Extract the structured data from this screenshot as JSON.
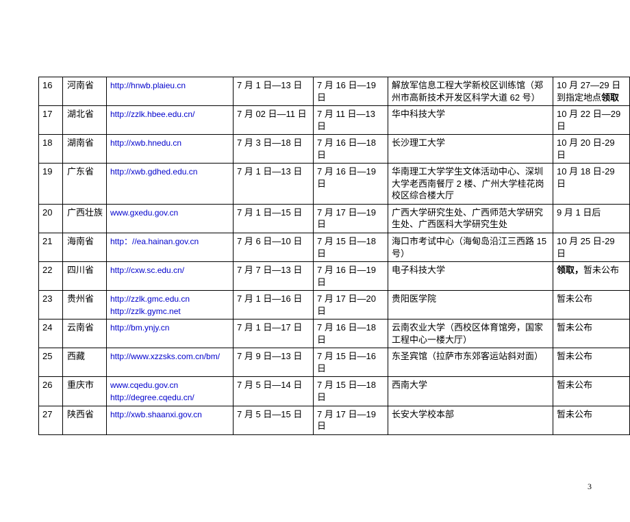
{
  "page_number": "3",
  "rows": [
    {
      "idx": "16",
      "province": "河南省",
      "url": "http://hnwb.plaieu.cn",
      "date1": "7 月 1 日—13 日",
      "date2": "7 月 16 日—19 日",
      "place": "解放军信息工程大学新校区训练馆（郑州市高新技术开发区科学大道 62 号）",
      "date3_pre": "10 月 27—29 日到指定地点",
      "date3_bold": "领取"
    },
    {
      "idx": "17",
      "province": "湖北省",
      "url": "http://zzlk.hbee.edu.cn/",
      "date1": "7 月 02 日—11 日",
      "date2": "7 月 11 日—13 日",
      "place": "华中科技大学",
      "date3": "10 月 22 日—29 日"
    },
    {
      "idx": "18",
      "province": "湖南省",
      "url": "http://xwb.hnedu.cn",
      "date1": "7 月 3 日—18 日",
      "date2": "7 月 16 日—18 日",
      "place": "长沙理工大学",
      "date3": "10 月 20 日-29 日"
    },
    {
      "idx": "19",
      "province": "广东省",
      "url": "http://xwb.gdhed.edu.cn",
      "date1": "7 月 1 日—13 日",
      "date2": "7 月 16 日—19 日",
      "place": "华南理工大学学生文体活动中心、深圳大学老西南餐厅 2 楼、广州大学桂花岗校区综合楼大厅",
      "date3": "10 月 18 日-29 日"
    },
    {
      "idx": "20",
      "province": "广西壮族",
      "url": "www.gxedu.gov.cn",
      "date1": "7 月 1 日—15 日",
      "date2": "7 月 17 日—19 日",
      "place": "广西大学研究生处、广西师范大学研究生处、广西医科大学研究生处",
      "date3": "9 月 1 日后"
    },
    {
      "idx": "21",
      "province": "海南省",
      "url": "http：//ea.hainan.gov.cn",
      "date1": "7 月 6 日—10 日",
      "date2": "7 月 15 日—18 日",
      "place": "海口市考试中心（海甸岛沿江三西路 15 号）",
      "date3": "10 月 25 日-29 日"
    },
    {
      "idx": "22",
      "province": "四川省",
      "url": "http://cxw.sc.edu.cn/",
      "date1": "7 月 7 日—13 日",
      "date2": "7 月 16 日—19 日",
      "place": "电子科技大学",
      "date3_bold": "领取，",
      "date3_post": "暂未公布"
    },
    {
      "idx": "23",
      "province": "贵州省",
      "url": "http://zzlk.gmc.edu.cn",
      "url2": "http://zzlk.gymc.net",
      "date1": "7 月 1 日—16 日",
      "date2": "7 月 17 日—20 日",
      "place": "贵阳医学院",
      "date3": "暂未公布"
    },
    {
      "idx": "24",
      "province": "云南省",
      "url": "http://bm.ynjy.cn",
      "date1": "7 月 1 日—17 日",
      "date2": "7 月 16 日—18 日",
      "place": "云南农业大学（西校区体育馆旁，国家工程中心一楼大厅）",
      "date3": "暂未公布"
    },
    {
      "idx": "25",
      "province": "西藏",
      "url": "http://www.xzzsks.com.cn/bm/",
      "date1": "7 月 9 日—13 日",
      "date2": "7 月 15 日—16 日",
      "place": "东圣宾馆（拉萨市东郊客运站斜对面）",
      "date3": "暂未公布"
    },
    {
      "idx": "26",
      "province": "重庆市",
      "url": "www.cqedu.gov.cn",
      "url2": "http://degree.cqedu.cn/",
      "date1": "7 月 5 日—14 日",
      "date2": "7 月 15 日—18 日",
      "place": "西南大学",
      "date3": "暂未公布"
    },
    {
      "idx": "27",
      "province": "陕西省",
      "url": "http://xwb.shaanxi.gov.cn",
      "date1": "7 月 5 日—15 日",
      "date2": "7 月 17 日—19 日",
      "place": "长安大学校本部",
      "date3": "暂未公布"
    }
  ]
}
